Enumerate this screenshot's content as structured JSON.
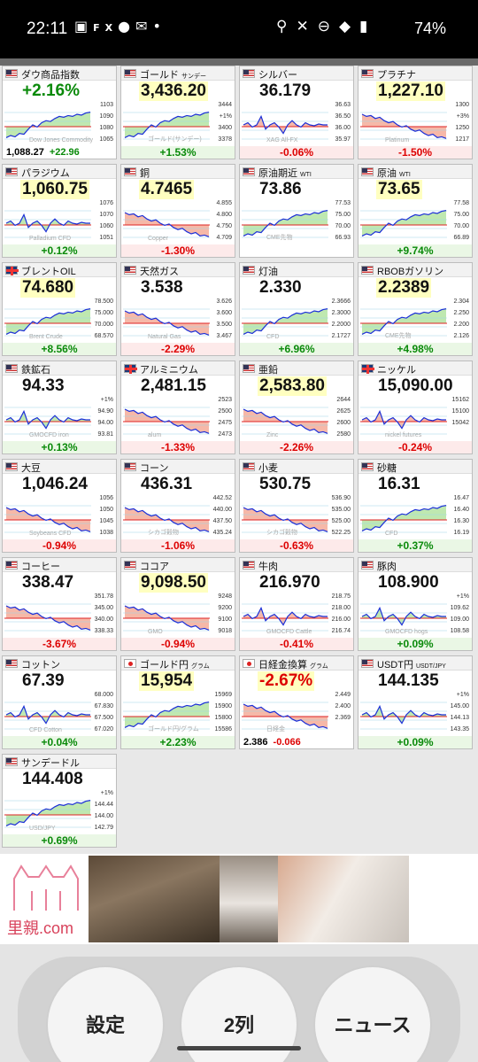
{
  "status_bar": {
    "time": "22:11",
    "left_icons": [
      "image-icon",
      "fx-icon",
      "line-icon",
      "mail-icon",
      "dot-icon"
    ],
    "right_icons": [
      "location-icon",
      "mute-icon",
      "dnd-icon",
      "wifi-icon",
      "battery-icon"
    ],
    "battery": "74%"
  },
  "tiles": [
    {
      "flag": "us",
      "name": "ダウ商品指数",
      "sub": "",
      "price": "+2.16%",
      "change": "",
      "info_price": "1,088.27",
      "info_change": "+22.96",
      "dir": "up",
      "labels": [
        "1103",
        "1090",
        "1080",
        "1065"
      ],
      "wm": "Dow Jones Commodity",
      "shape": "up",
      "hl": false,
      "pricecolor": "green"
    },
    {
      "flag": "us",
      "name": "ゴールド",
      "sub": "サンデー",
      "price": "3,436.20",
      "change": "+1.53%",
      "dir": "up",
      "labels": [
        "3444",
        "+1%",
        "3400",
        "3378"
      ],
      "wm": "ゴールド(サンデー)",
      "shape": "up"
    },
    {
      "flag": "us",
      "name": "シルバー",
      "sub": "",
      "price": "36.179",
      "change": "-0.06%",
      "dir": "down",
      "labels": [
        "36.63",
        "36.50",
        "36.00",
        "35.97"
      ],
      "wm": "XAG All-FX",
      "shape": "flat",
      "hl": false
    },
    {
      "flag": "us",
      "name": "プラチナ",
      "sub": "",
      "price": "1,227.10",
      "change": "-1.50%",
      "dir": "down",
      "labels": [
        "1300",
        "+3%",
        "1250",
        "1217"
      ],
      "wm": "Platinum",
      "shape": "down"
    },
    {
      "flag": "us",
      "name": "パラジウム",
      "sub": "",
      "price": "1,060.75",
      "change": "+0.12%",
      "dir": "up",
      "labels": [
        "1076",
        "1070",
        "1060",
        "1051"
      ],
      "wm": "Palladium CFD",
      "shape": "flat"
    },
    {
      "flag": "us",
      "name": "銅",
      "sub": "",
      "price": "4.7465",
      "change": "-1.30%",
      "dir": "down",
      "labels": [
        "4.855",
        "4.800",
        "4.750",
        "4.709"
      ],
      "wm": "Copper",
      "shape": "down"
    },
    {
      "flag": "us",
      "name": "原油期近",
      "sub": "WTI",
      "price": "73.86",
      "change": "",
      "dir": "up",
      "labels": [
        "77.53",
        "75.00",
        "70.00",
        "66.93"
      ],
      "wm": "CME先物",
      "shape": "up",
      "hl": false
    },
    {
      "flag": "us",
      "name": "原油",
      "sub": "WTI",
      "price": "73.65",
      "change": "+9.74%",
      "dir": "up",
      "labels": [
        "77.58",
        "75.00",
        "70.00",
        "66.89"
      ],
      "wm": "",
      "shape": "up"
    },
    {
      "flag": "uk",
      "name": "ブレントOIL",
      "sub": "",
      "price": "74.680",
      "change": "+8.56%",
      "dir": "up",
      "labels": [
        "78.500",
        "75.000",
        "70.000",
        "68.570"
      ],
      "wm": "Brent Crude",
      "shape": "up"
    },
    {
      "flag": "us",
      "name": "天然ガス",
      "sub": "",
      "price": "3.538",
      "change": "-2.29%",
      "dir": "down",
      "labels": [
        "3.626",
        "3.600",
        "3.500",
        "3.467"
      ],
      "wm": "Natural Gas",
      "shape": "down",
      "hl": false
    },
    {
      "flag": "us",
      "name": "灯油",
      "sub": "",
      "price": "2.330",
      "change": "+6.96%",
      "dir": "up",
      "labels": [
        "2.3666",
        "2.3000",
        "2.2000",
        "2.1727"
      ],
      "wm": "CFD",
      "shape": "up",
      "hl": false
    },
    {
      "flag": "us",
      "name": "RBOBガソリン",
      "sub": "",
      "price": "2.2389",
      "change": "+4.98%",
      "dir": "up",
      "labels": [
        "2.304",
        "2.250",
        "2.200",
        "2.126"
      ],
      "wm": "CME先物",
      "shape": "up"
    },
    {
      "flag": "us",
      "name": "鉄鉱石",
      "sub": "",
      "price": "94.33",
      "change": "+0.13%",
      "dir": "up",
      "labels": [
        "+1%",
        "94.90",
        "94.00",
        "93.81"
      ],
      "wm": "GMOCFD iron",
      "shape": "flat",
      "hl": false
    },
    {
      "flag": "uk",
      "name": "アルミニウム",
      "sub": "",
      "price": "2,481.15",
      "change": "-1.33%",
      "dir": "down",
      "labels": [
        "2523",
        "2500",
        "2475",
        "2473"
      ],
      "wm": "alum",
      "shape": "down",
      "hl": false
    },
    {
      "flag": "us",
      "name": "亜鉛",
      "sub": "",
      "price": "2,583.80",
      "change": "-2.26%",
      "dir": "down",
      "labels": [
        "2644",
        "2625",
        "2600",
        "2580"
      ],
      "wm": "Zinc",
      "shape": "down"
    },
    {
      "flag": "uk",
      "name": "ニッケル",
      "sub": "",
      "price": "15,090.00",
      "change": "-0.24%",
      "dir": "down",
      "labels": [
        "15162",
        "15100",
        "15042",
        ""
      ],
      "wm": "nickel futures",
      "shape": "flat",
      "hl": false
    },
    {
      "flag": "us",
      "name": "大豆",
      "sub": "",
      "price": "1,046.24",
      "change": "-0.94%",
      "dir": "down",
      "labels": [
        "1056",
        "1050",
        "1045",
        "1038"
      ],
      "wm": "Soybeans CFD",
      "shape": "down",
      "hl": false
    },
    {
      "flag": "us",
      "name": "コーン",
      "sub": "",
      "price": "436.31",
      "change": "-1.06%",
      "dir": "down",
      "labels": [
        "442.52",
        "440.00",
        "437.50",
        "435.24"
      ],
      "wm": "シカゴ穀物",
      "shape": "down",
      "hl": false
    },
    {
      "flag": "us",
      "name": "小麦",
      "sub": "",
      "price": "530.75",
      "change": "-0.63%",
      "dir": "down",
      "labels": [
        "536.90",
        "535.00",
        "525.00",
        "522.25"
      ],
      "wm": "シカゴ穀物",
      "shape": "down",
      "hl": false
    },
    {
      "flag": "us",
      "name": "砂糖",
      "sub": "",
      "price": "16.31",
      "change": "+0.37%",
      "dir": "up",
      "labels": [
        "16.47",
        "16.40",
        "16.30",
        "16.19"
      ],
      "wm": "CFD",
      "shape": "up",
      "hl": false
    },
    {
      "flag": "us",
      "name": "コーヒー",
      "sub": "",
      "price": "338.47",
      "change": "-3.67%",
      "dir": "down",
      "labels": [
        "351.78",
        "345.00",
        "340.00",
        "338.33"
      ],
      "wm": "",
      "shape": "down",
      "hl": false
    },
    {
      "flag": "us",
      "name": "ココア",
      "sub": "",
      "price": "9,098.50",
      "change": "-0.94%",
      "dir": "down",
      "labels": [
        "9248",
        "9200",
        "9100",
        "9018"
      ],
      "wm": "GMO",
      "shape": "down"
    },
    {
      "flag": "us",
      "name": "牛肉",
      "sub": "",
      "price": "216.970",
      "change": "-0.41%",
      "dir": "down",
      "labels": [
        "218.75",
        "218.00",
        "216.00",
        "216.74"
      ],
      "wm": "GMOCFD Cattle",
      "shape": "flat",
      "hl": false
    },
    {
      "flag": "us",
      "name": "豚肉",
      "sub": "",
      "price": "108.900",
      "change": "+0.09%",
      "dir": "up",
      "labels": [
        "+1%",
        "109.62",
        "109.00",
        "108.58"
      ],
      "wm": "GMOCFD hogs",
      "shape": "flat",
      "hl": false
    },
    {
      "flag": "us",
      "name": "コットン",
      "sub": "",
      "price": "67.39",
      "change": "+0.04%",
      "dir": "up",
      "labels": [
        "68.000",
        "67.830",
        "67.500",
        "67.020"
      ],
      "wm": "CFD Cotton",
      "shape": "flat",
      "hl": false
    },
    {
      "flag": "jp",
      "name": "ゴールド円",
      "sub": "グラム",
      "price": "15,954",
      "change": "+2.23%",
      "dir": "up",
      "labels": [
        "15969",
        "15900",
        "15800",
        "15586"
      ],
      "wm": "ゴールド円/グラム",
      "shape": "up"
    },
    {
      "flag": "jp",
      "name": "日経金換算",
      "sub": "グラム",
      "price": "-2.67%",
      "change": "",
      "info_price": "2.386",
      "info_change": "-0.066",
      "dir": "down",
      "labels": [
        "2.449",
        "2.400",
        "2.369",
        ""
      ],
      "wm": "日経金",
      "shape": "down",
      "pricecolor": "red"
    },
    {
      "flag": "us",
      "name": "USDT円",
      "sub": "USDT/JPY",
      "price": "144.135",
      "change": "+0.09%",
      "dir": "up",
      "labels": [
        "+1%",
        "145.00",
        "144.13",
        "143.35"
      ],
      "wm": "",
      "shape": "flat",
      "hl": false
    },
    {
      "flag": "us",
      "name": "サンデードル",
      "sub": "",
      "price": "144.408",
      "change": "+0.69%",
      "dir": "up",
      "labels": [
        "+1%",
        "144.44",
        "144.00",
        "142.79"
      ],
      "wm": "USD/JPY",
      "shape": "up",
      "hl": false
    }
  ],
  "ad": {
    "brand": "里親.com",
    "photos": [
      "cat-photo-1",
      "cat-photo-2",
      "cat-photo-3"
    ]
  },
  "bottom_buttons": {
    "settings": "設定",
    "columns": "2列",
    "news": "ニュース"
  }
}
